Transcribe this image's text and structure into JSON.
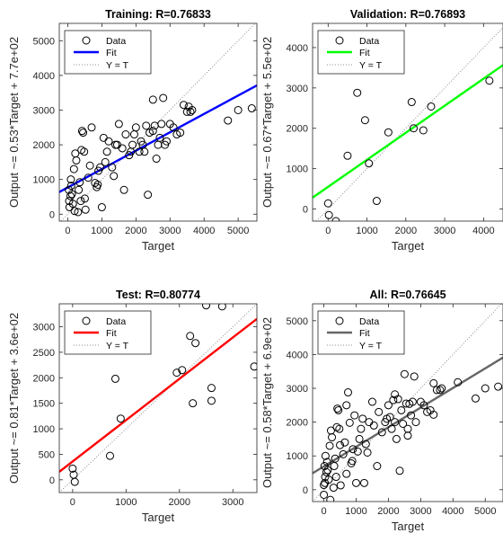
{
  "chart_data": [
    {
      "type": "scatter",
      "title": "Training: R=0.76833",
      "xlabel": "Target",
      "ylabel": "Output ~= 0.53*Target + 7.7e+02",
      "xlim": [
        -250,
        5550
      ],
      "ylim": [
        -200,
        5500
      ],
      "xticks": [
        0,
        1000,
        2000,
        3000,
        4000,
        5000
      ],
      "yticks": [
        0,
        1000,
        2000,
        3000,
        4000,
        5000
      ],
      "fit": {
        "slope": 0.53,
        "intercept": 770,
        "color": "#0000ff"
      },
      "legend": {
        "position": "top-left",
        "entries": [
          "Data",
          "Fit",
          "Y = T"
        ]
      },
      "points": [
        [
          30,
          700
        ],
        [
          40,
          380
        ],
        [
          50,
          200
        ],
        [
          80,
          520
        ],
        [
          90,
          1000
        ],
        [
          100,
          820
        ],
        [
          120,
          580
        ],
        [
          150,
          300
        ],
        [
          180,
          1300
        ],
        [
          200,
          90
        ],
        [
          220,
          1750
        ],
        [
          250,
          1550
        ],
        [
          300,
          60
        ],
        [
          320,
          700
        ],
        [
          350,
          920
        ],
        [
          380,
          380
        ],
        [
          400,
          1850
        ],
        [
          420,
          2400
        ],
        [
          450,
          2350
        ],
        [
          480,
          1800
        ],
        [
          500,
          450
        ],
        [
          520,
          130
        ],
        [
          600,
          1050
        ],
        [
          650,
          1400
        ],
        [
          700,
          2500
        ],
        [
          800,
          900
        ],
        [
          850,
          780
        ],
        [
          880,
          850
        ],
        [
          900,
          1250
        ],
        [
          950,
          1350
        ],
        [
          1000,
          200
        ],
        [
          1050,
          2200
        ],
        [
          1100,
          1500
        ],
        [
          1150,
          1800
        ],
        [
          1200,
          2100
        ],
        [
          1300,
          1350
        ],
        [
          1350,
          1100
        ],
        [
          1400,
          2000
        ],
        [
          1450,
          2000
        ],
        [
          1500,
          2600
        ],
        [
          1600,
          1900
        ],
        [
          1650,
          700
        ],
        [
          1700,
          2300
        ],
        [
          1800,
          1700
        ],
        [
          1850,
          1800
        ],
        [
          1900,
          2000
        ],
        [
          1950,
          2300
        ],
        [
          2000,
          2500
        ],
        [
          2100,
          1800
        ],
        [
          2150,
          2100
        ],
        [
          2200,
          2000
        ],
        [
          2250,
          1800
        ],
        [
          2300,
          2550
        ],
        [
          2350,
          560
        ],
        [
          2400,
          2350
        ],
        [
          2500,
          2400
        ],
        [
          2550,
          2550
        ],
        [
          2600,
          1600
        ],
        [
          2650,
          2000
        ],
        [
          2700,
          2200
        ],
        [
          2750,
          2600
        ],
        [
          2800,
          3350
        ],
        [
          2850,
          2000
        ],
        [
          2900,
          2100
        ],
        [
          3000,
          2600
        ],
        [
          3100,
          2500
        ],
        [
          3200,
          2300
        ],
        [
          3300,
          2350
        ],
        [
          3400,
          3150
        ],
        [
          3500,
          2950
        ],
        [
          3550,
          3100
        ],
        [
          3600,
          2950
        ],
        [
          3650,
          3000
        ],
        [
          4700,
          2700
        ],
        [
          5000,
          3000
        ],
        [
          5400,
          3050
        ],
        [
          2500,
          3300
        ]
      ]
    },
    {
      "type": "scatter",
      "title": "Validation: R=0.76893",
      "xlabel": "Target",
      "ylabel": "Output ~= 0.67*Target + 5.5e+02",
      "xlim": [
        -400,
        4500
      ],
      "ylim": [
        -300,
        4600
      ],
      "xticks": [
        0,
        1000,
        2000,
        3000,
        4000
      ],
      "yticks": [
        0,
        1000,
        2000,
        3000,
        4000
      ],
      "fit": {
        "slope": 0.67,
        "intercept": 550,
        "color": "#00ff00"
      },
      "legend": {
        "position": "top-left",
        "entries": [
          "Data",
          "Fit",
          "Y = T"
        ]
      },
      "points": [
        [
          0,
          140
        ],
        [
          20,
          -150
        ],
        [
          200,
          -300
        ],
        [
          500,
          1320
        ],
        [
          750,
          2880
        ],
        [
          950,
          2200
        ],
        [
          1050,
          1130
        ],
        [
          1250,
          200
        ],
        [
          1550,
          1900
        ],
        [
          2150,
          2650
        ],
        [
          2200,
          2000
        ],
        [
          2450,
          1950
        ],
        [
          2650,
          2540
        ],
        [
          4150,
          3180
        ]
      ]
    },
    {
      "type": "scatter",
      "title": "Test: R=0.80774",
      "xlabel": "Target",
      "ylabel": "Output ~= 0.81*Target + 3.6e+02",
      "xlim": [
        -250,
        3450
      ],
      "ylim": [
        -250,
        3450
      ],
      "xticks": [
        0,
        1000,
        2000,
        3000
      ],
      "yticks": [
        0,
        500,
        1000,
        1500,
        2000,
        2500,
        3000
      ],
      "fit": {
        "slope": 0.81,
        "intercept": 360,
        "color": "#ff0000"
      },
      "legend": {
        "position": "top-left",
        "entries": [
          "Data",
          "Fit",
          "Y = T"
        ]
      },
      "points": [
        [
          0,
          220
        ],
        [
          20,
          100
        ],
        [
          40,
          -40
        ],
        [
          700,
          470
        ],
        [
          800,
          1980
        ],
        [
          900,
          1200
        ],
        [
          1950,
          2100
        ],
        [
          2050,
          2150
        ],
        [
          2200,
          2820
        ],
        [
          2250,
          1500
        ],
        [
          2300,
          2680
        ],
        [
          2500,
          3420
        ],
        [
          2600,
          1800
        ],
        [
          2600,
          1550
        ],
        [
          2800,
          3400
        ],
        [
          3400,
          2220
        ]
      ]
    },
    {
      "type": "scatter",
      "title": "All: R=0.76645",
      "xlabel": "Target",
      "ylabel": "Output ~= 0.58*Target + 6.9e+02",
      "xlim": [
        -350,
        5550
      ],
      "ylim": [
        -350,
        5500
      ],
      "xticks": [
        0,
        1000,
        2000,
        3000,
        4000,
        5000
      ],
      "yticks": [
        0,
        1000,
        2000,
        3000,
        4000,
        5000
      ],
      "fit": {
        "slope": 0.58,
        "intercept": 690,
        "color": "#666666"
      },
      "legend": {
        "position": "top-left",
        "entries": [
          "Data",
          "Fit",
          "Y = T"
        ]
      },
      "points": [
        [
          0,
          140
        ],
        [
          0,
          -150
        ],
        [
          20,
          700
        ],
        [
          30,
          200
        ],
        [
          40,
          380
        ],
        [
          50,
          1000
        ],
        [
          80,
          520
        ],
        [
          100,
          820
        ],
        [
          120,
          580
        ],
        [
          150,
          300
        ],
        [
          180,
          1300
        ],
        [
          200,
          -300
        ],
        [
          220,
          1750
        ],
        [
          250,
          1550
        ],
        [
          300,
          60
        ],
        [
          320,
          700
        ],
        [
          350,
          920
        ],
        [
          380,
          380
        ],
        [
          400,
          1850
        ],
        [
          420,
          2400
        ],
        [
          450,
          2350
        ],
        [
          480,
          1800
        ],
        [
          500,
          1320
        ],
        [
          520,
          130
        ],
        [
          600,
          1050
        ],
        [
          650,
          1400
        ],
        [
          700,
          2500
        ],
        [
          700,
          470
        ],
        [
          750,
          2880
        ],
        [
          800,
          1980
        ],
        [
          850,
          780
        ],
        [
          880,
          850
        ],
        [
          900,
          1200
        ],
        [
          950,
          2200
        ],
        [
          1000,
          200
        ],
        [
          1050,
          1130
        ],
        [
          1100,
          1500
        ],
        [
          1150,
          1800
        ],
        [
          1200,
          2100
        ],
        [
          1250,
          200
        ],
        [
          1300,
          1350
        ],
        [
          1350,
          1100
        ],
        [
          1400,
          2000
        ],
        [
          1500,
          2600
        ],
        [
          1550,
          1900
        ],
        [
          1650,
          700
        ],
        [
          1700,
          2300
        ],
        [
          1800,
          1700
        ],
        [
          1900,
          2000
        ],
        [
          1950,
          2100
        ],
        [
          2000,
          2500
        ],
        [
          2050,
          2150
        ],
        [
          2100,
          1800
        ],
        [
          2150,
          2650
        ],
        [
          2200,
          2000
        ],
        [
          2200,
          2820
        ],
        [
          2250,
          1500
        ],
        [
          2300,
          2680
        ],
        [
          2350,
          560
        ],
        [
          2400,
          2350
        ],
        [
          2450,
          1950
        ],
        [
          2500,
          3420
        ],
        [
          2550,
          2550
        ],
        [
          2600,
          1600
        ],
        [
          2600,
          1800
        ],
        [
          2650,
          2540
        ],
        [
          2700,
          2200
        ],
        [
          2750,
          2600
        ],
        [
          2800,
          3350
        ],
        [
          2850,
          2000
        ],
        [
          3000,
          2600
        ],
        [
          3100,
          2500
        ],
        [
          3200,
          2300
        ],
        [
          3300,
          2350
        ],
        [
          3400,
          3150
        ],
        [
          3400,
          2220
        ],
        [
          3500,
          2950
        ],
        [
          3600,
          2950
        ],
        [
          3650,
          3000
        ],
        [
          4150,
          3180
        ],
        [
          4700,
          2700
        ],
        [
          5000,
          3000
        ],
        [
          5400,
          3050
        ]
      ]
    }
  ]
}
